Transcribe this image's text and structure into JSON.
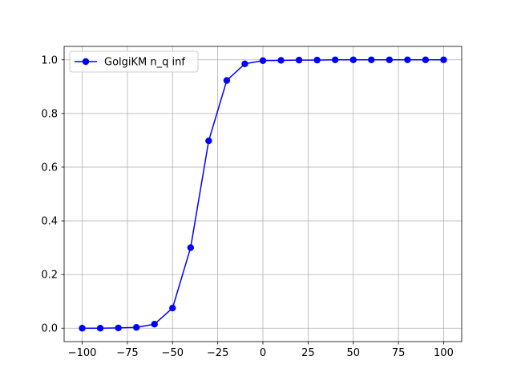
{
  "chart_data": {
    "type": "line",
    "title": "",
    "xlabel": "",
    "ylabel": "",
    "xlim": [
      -110,
      110
    ],
    "ylim": [
      -0.05,
      1.05
    ],
    "x_ticks": [
      -100,
      -75,
      -50,
      -25,
      0,
      25,
      50,
      75,
      100
    ],
    "x_tick_labels": [
      "−100",
      "−75",
      "−50",
      "−25",
      "0",
      "25",
      "50",
      "75",
      "100"
    ],
    "y_ticks": [
      0.0,
      0.2,
      0.4,
      0.6,
      0.8,
      1.0
    ],
    "y_tick_labels": [
      "0.0",
      "0.2",
      "0.4",
      "0.6",
      "0.8",
      "1.0"
    ],
    "grid": true,
    "legend_position": "top-left",
    "series": [
      {
        "name": "GolgiKM n_q inf",
        "color": "#0000ff",
        "marker": "circle",
        "x": [
          -100,
          -90,
          -80,
          -70,
          -60,
          -50,
          -40,
          -30,
          -20,
          -10,
          0,
          10,
          20,
          30,
          40,
          50,
          60,
          70,
          80,
          90,
          100
        ],
        "y": [
          0.0,
          0.0,
          0.001,
          0.003,
          0.015,
          0.075,
          0.3,
          0.698,
          0.923,
          0.985,
          0.997,
          0.998,
          0.999,
          0.999,
          1.0,
          1.0,
          1.0,
          1.0,
          1.0,
          1.0,
          1.0
        ]
      }
    ]
  }
}
